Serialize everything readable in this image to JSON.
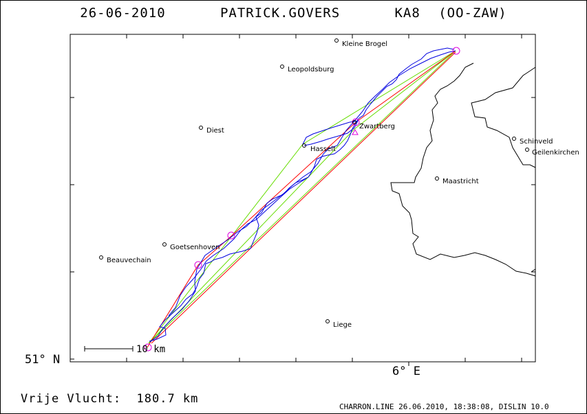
{
  "title": "26-06-2010   PATRICK.GOVERS   KA8 (OO-ZAW)",
  "axis": {
    "lat_label": "51° N",
    "lon_label": "6° E"
  },
  "scale": {
    "label": "10 km"
  },
  "summary": "Vrije Vlucht:  180.7 km",
  "footer": "CHARRON.LINE 26.06.2010, 18:38:08, DISLIN 10.0",
  "places": [
    {
      "name": "Kleine Brogel"
    },
    {
      "name": "Leopoldsburg"
    },
    {
      "name": "Diest"
    },
    {
      "name": "Zwartberg"
    },
    {
      "name": "Hasselt"
    },
    {
      "name": "Schinveld"
    },
    {
      "name": "Geilenkirchen"
    },
    {
      "name": "Maastricht"
    },
    {
      "name": "Goetsenhoven"
    },
    {
      "name": "Beauvechain"
    },
    {
      "name": "Liege"
    }
  ],
  "colors": {
    "track": "#0000e0",
    "task": "#ff0000",
    "triangle": "#66dd00",
    "turnpoint": "#e000e0",
    "border": "#000000"
  }
}
